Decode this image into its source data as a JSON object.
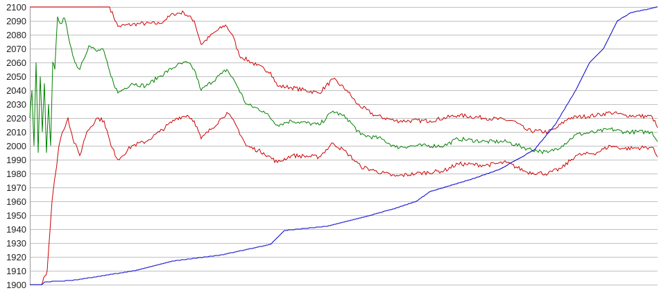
{
  "chart_data": {
    "type": "line",
    "title": "",
    "xlabel": "",
    "ylabel": "",
    "ylim": [
      1900,
      2100
    ],
    "yticks": [
      1900,
      1910,
      1920,
      1930,
      1940,
      1950,
      1960,
      1970,
      1980,
      1990,
      2000,
      2010,
      2020,
      2030,
      2040,
      2050,
      2060,
      2070,
      2080,
      2090,
      2100
    ],
    "grid": true,
    "legend": "none",
    "xlim": [
      0,
      905
    ],
    "series": [
      {
        "color": "#cc0000",
        "points": [
          [
            0,
            2100
          ],
          [
            115,
            2100
          ],
          [
            127,
            2086
          ],
          [
            157,
            2088
          ],
          [
            187,
            2088
          ],
          [
            207,
            2095
          ],
          [
            222,
            2096
          ],
          [
            237,
            2090
          ],
          [
            247,
            2073
          ],
          [
            267,
            2082
          ],
          [
            282,
            2087
          ],
          [
            292,
            2080
          ],
          [
            302,
            2065
          ],
          [
            327,
            2058
          ],
          [
            347,
            2053
          ],
          [
            357,
            2043
          ],
          [
            377,
            2042
          ],
          [
            417,
            2038
          ],
          [
            437,
            2048
          ],
          [
            457,
            2040
          ],
          [
            472,
            2030
          ],
          [
            497,
            2022
          ],
          [
            527,
            2018
          ],
          [
            577,
            2018
          ],
          [
            617,
            2022
          ],
          [
            657,
            2020
          ],
          [
            697,
            2018
          ],
          [
            717,
            2011
          ],
          [
            747,
            2010
          ],
          [
            757,
            2012
          ],
          [
            777,
            2020
          ],
          [
            817,
            2022
          ],
          [
            837,
            2024
          ],
          [
            857,
            2022
          ],
          [
            897,
            2021
          ],
          [
            905,
            2013
          ]
        ]
      },
      {
        "color": "#008000",
        "points": [
          [
            0,
            2020
          ],
          [
            3,
            2040
          ],
          [
            6,
            2000
          ],
          [
            9,
            2060
          ],
          [
            12,
            1995
          ],
          [
            15,
            2050
          ],
          [
            18,
            2010
          ],
          [
            21,
            2045
          ],
          [
            24,
            1995
          ],
          [
            27,
            2030
          ],
          [
            30,
            2000
          ],
          [
            33,
            2060
          ],
          [
            36,
            2055
          ],
          [
            40,
            2093
          ],
          [
            45,
            2088
          ],
          [
            50,
            2092
          ],
          [
            55,
            2080
          ],
          [
            60,
            2070
          ],
          [
            65,
            2060
          ],
          [
            72,
            2055
          ],
          [
            75,
            2060
          ],
          [
            85,
            2072
          ],
          [
            97,
            2068
          ],
          [
            105,
            2070
          ],
          [
            117,
            2050
          ],
          [
            127,
            2038
          ],
          [
            147,
            2045
          ],
          [
            167,
            2043
          ],
          [
            187,
            2050
          ],
          [
            212,
            2058
          ],
          [
            227,
            2060
          ],
          [
            237,
            2055
          ],
          [
            247,
            2040
          ],
          [
            277,
            2052
          ],
          [
            284,
            2055
          ],
          [
            297,
            2045
          ],
          [
            312,
            2030
          ],
          [
            337,
            2025
          ],
          [
            357,
            2015
          ],
          [
            377,
            2018
          ],
          [
            417,
            2015
          ],
          [
            437,
            2025
          ],
          [
            457,
            2020
          ],
          [
            477,
            2008
          ],
          [
            507,
            2005
          ],
          [
            527,
            1999
          ],
          [
            557,
            2000
          ],
          [
            597,
            2000
          ],
          [
            617,
            2005
          ],
          [
            657,
            2003
          ],
          [
            687,
            2003
          ],
          [
            717,
            1998
          ],
          [
            737,
            1996
          ],
          [
            747,
            1995
          ],
          [
            767,
            2000
          ],
          [
            787,
            2008
          ],
          [
            817,
            2010
          ],
          [
            837,
            2012
          ],
          [
            857,
            2010
          ],
          [
            897,
            2010
          ],
          [
            905,
            2003
          ]
        ]
      },
      {
        "color": "#cc0000",
        "points": [
          [
            0,
            1900
          ],
          [
            17,
            1900
          ],
          [
            20,
            1905
          ],
          [
            25,
            1910
          ],
          [
            27,
            1925
          ],
          [
            32,
            1960
          ],
          [
            37,
            1980
          ],
          [
            42,
            2000
          ],
          [
            47,
            2010
          ],
          [
            55,
            2020
          ],
          [
            62,
            2005
          ],
          [
            72,
            1993
          ],
          [
            82,
            2010
          ],
          [
            97,
            2020
          ],
          [
            107,
            2018
          ],
          [
            117,
            2000
          ],
          [
            127,
            1990
          ],
          [
            147,
            2000
          ],
          [
            167,
            2003
          ],
          [
            187,
            2010
          ],
          [
            212,
            2020
          ],
          [
            227,
            2022
          ],
          [
            237,
            2018
          ],
          [
            247,
            2005
          ],
          [
            277,
            2020
          ],
          [
            284,
            2024
          ],
          [
            297,
            2015
          ],
          [
            312,
            2000
          ],
          [
            337,
            1995
          ],
          [
            357,
            1988
          ],
          [
            377,
            1993
          ],
          [
            417,
            1992
          ],
          [
            437,
            2002
          ],
          [
            457,
            1995
          ],
          [
            477,
            1985
          ],
          [
            497,
            1982
          ],
          [
            527,
            1978
          ],
          [
            557,
            1980
          ],
          [
            597,
            1982
          ],
          [
            617,
            1987
          ],
          [
            657,
            1986
          ],
          [
            687,
            1988
          ],
          [
            717,
            1981
          ],
          [
            747,
            1980
          ],
          [
            767,
            1984
          ],
          [
            787,
            1993
          ],
          [
            817,
            1995
          ],
          [
            837,
            2000
          ],
          [
            857,
            1998
          ],
          [
            897,
            1999
          ],
          [
            905,
            1992
          ]
        ]
      },
      {
        "color": "#0000cc",
        "points": [
          [
            0,
            1900
          ],
          [
            17,
            1900
          ],
          [
            22,
            1902
          ],
          [
            60,
            1903
          ],
          [
            100,
            1906
          ],
          [
            150,
            1910
          ],
          [
            207,
            1917
          ],
          [
            277,
            1921.5
          ],
          [
            347,
            1929
          ],
          [
            367,
            1939
          ],
          [
            427,
            1942
          ],
          [
            477,
            1948
          ],
          [
            527,
            1955
          ],
          [
            557,
            1960
          ],
          [
            577,
            1967
          ],
          [
            637,
            1976
          ],
          [
            677,
            1983
          ],
          [
            702,
            1990
          ],
          [
            727,
            1997
          ],
          [
            757,
            2015
          ],
          [
            787,
            2040
          ],
          [
            807,
            2060
          ],
          [
            827,
            2070
          ],
          [
            847,
            2090
          ],
          [
            867,
            2096
          ],
          [
            887,
            2098
          ],
          [
            905,
            2100
          ]
        ]
      }
    ]
  }
}
